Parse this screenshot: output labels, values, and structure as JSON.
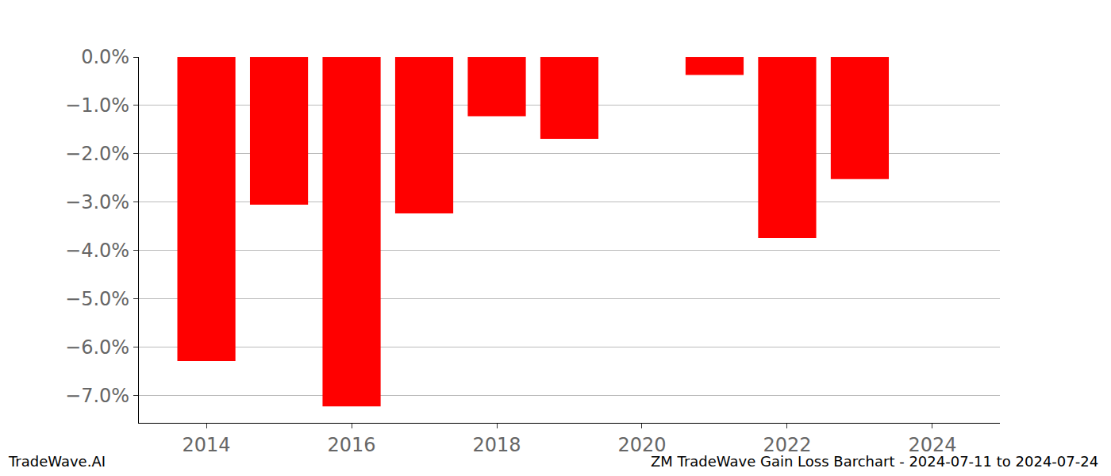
{
  "chart_data": {
    "type": "bar",
    "x": [
      2014,
      2015,
      2016,
      2017,
      2018,
      2019,
      2021,
      2022,
      2023
    ],
    "values": [
      -6.28,
      -3.05,
      -7.22,
      -3.23,
      -1.22,
      -1.69,
      -0.37,
      -3.74,
      -2.52
    ],
    "color": "#ff0000",
    "xlim": [
      2013.07,
      2024.93
    ],
    "xticks": [
      2014,
      2016,
      2018,
      2020,
      2022,
      2024
    ],
    "ylim": [
      -7.56,
      0
    ],
    "yticks": [
      {
        "value": 0,
        "label": "0.0%"
      },
      {
        "value": -1,
        "label": "−1.0%"
      },
      {
        "value": -2,
        "label": "−2.0%"
      },
      {
        "value": -3,
        "label": "−3.0%"
      },
      {
        "value": -4,
        "label": "−4.0%"
      },
      {
        "value": -5,
        "label": "−5.0%"
      },
      {
        "value": -6,
        "label": "−6.0%"
      },
      {
        "value": -7,
        "label": "−7.0%"
      }
    ],
    "grid": true,
    "annotations": [
      "TradeWave.AI",
      "ZM TradeWave Gain Loss Barchart - 2024-07-11 to 2024-07-24"
    ]
  }
}
